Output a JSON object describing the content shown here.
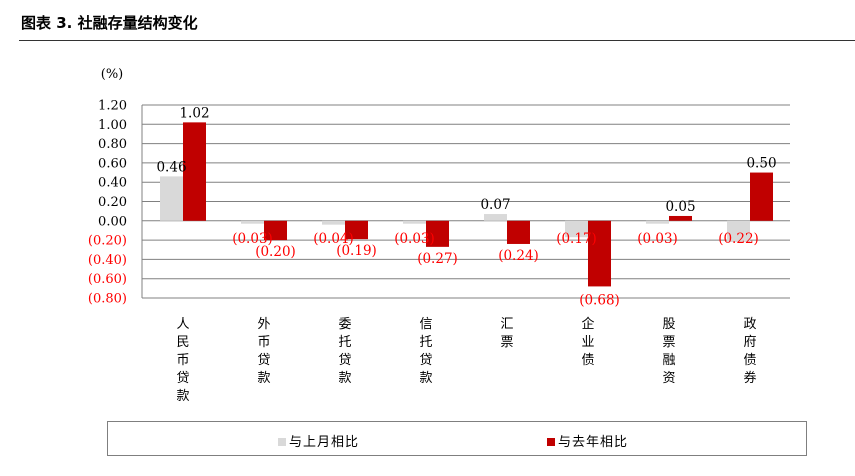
{
  "figure_title": "图表 3. 社融存量结构变化",
  "colors": {
    "mom": "#d9d9d9",
    "yoy": "#c00000",
    "neg_label": "#ff0000",
    "axis": "#808080"
  },
  "chart_data": {
    "type": "bar",
    "unit_label": "(%)",
    "categories": [
      "人民币贷款",
      "外币贷款",
      "委托贷款",
      "信托贷款",
      "汇票",
      "企业债",
      "股票融资",
      "政府债券"
    ],
    "series": [
      {
        "name": "与上月相比",
        "values": [
          0.46,
          -0.03,
          -0.04,
          -0.03,
          0.07,
          -0.17,
          -0.03,
          -0.22
        ],
        "labels": [
          "0.46",
          "(0.03)",
          "(0.04)",
          "(0.03)",
          "0.07",
          "(0.17)",
          "(0.03)",
          "(0.22)"
        ]
      },
      {
        "name": "与去年相比",
        "values": [
          1.02,
          -0.2,
          -0.19,
          -0.27,
          -0.24,
          -0.68,
          0.05,
          0.5
        ],
        "labels": [
          "1.02",
          "(0.20)",
          "(0.19)",
          "(0.27)",
          "(0.24)",
          "(0.68)",
          "0.05",
          "0.50"
        ]
      }
    ],
    "yticks": [
      1.2,
      1.0,
      0.8,
      0.6,
      0.4,
      0.2,
      0.0,
      -0.2,
      -0.4,
      -0.6,
      -0.8
    ],
    "ytick_labels": [
      "1.20",
      "1.00",
      "0.80",
      "0.60",
      "0.40",
      "0.20",
      "0.00",
      "(0.20)",
      "(0.40)",
      "(0.60)",
      "(0.80)"
    ],
    "ylim": [
      -0.8,
      1.2
    ],
    "grid": true,
    "legend_position": "bottom"
  }
}
